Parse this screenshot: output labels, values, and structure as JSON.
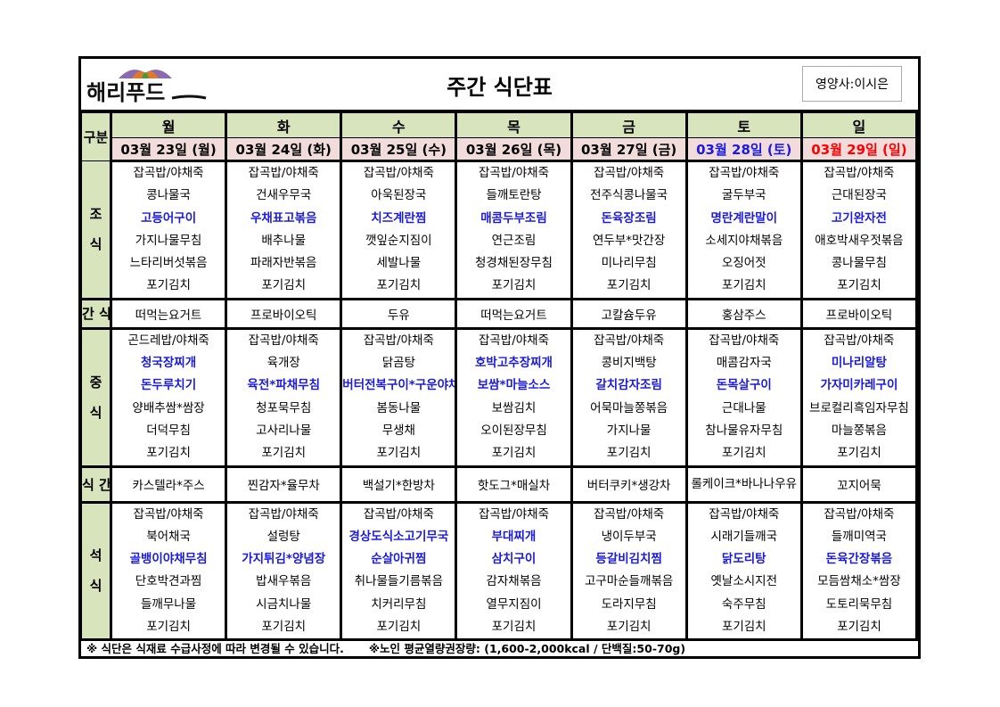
{
  "header": {
    "logo_text": "해리푸드",
    "title": "주간 식단표",
    "nutritionist": "영양사:이시은"
  },
  "labels": {
    "category": "구분",
    "breakfast": "조 식",
    "snack1": "간 식",
    "lunch": "중 식",
    "snack2": "식 간",
    "dinner": "석 식"
  },
  "colors": {
    "header_bg": "#d8e4bc",
    "date_bg": "#f2dcdb",
    "highlight": "#1a1ae0",
    "saturday": "#1a1ae0",
    "sunday": "#ff0000"
  },
  "days": [
    {
      "day": "월",
      "date": "03월 23일 (월)",
      "breakfast": [
        "잡곡밥/야채죽",
        "콩나물국",
        "고등어구이",
        "가지나물무침",
        "느타리버섯볶음",
        "포기김치"
      ],
      "snack1": "떠먹는요거트",
      "lunch": [
        "곤드레밥/야채죽",
        "청국장찌개",
        "돈두루치기",
        "양배추쌈*쌈장",
        "더덕무침",
        "포기김치"
      ],
      "snack2": "카스텔라*주스",
      "dinner": [
        "잡곡밥/야채죽",
        "북어채국",
        "골뱅이야채무침",
        "단호박견과찜",
        "들깨무나물",
        "포기김치"
      ]
    },
    {
      "day": "화",
      "date": "03월 24일 (화)",
      "breakfast": [
        "잡곡밥/야채죽",
        "건새우무국",
        "우채표고볶음",
        "배추나물",
        "파래자반볶음",
        "포기김치"
      ],
      "snack1": "프로바이오틱",
      "lunch": [
        "잡곡밥/야채죽",
        "육개장",
        "육전*파채무침",
        "청포묵무침",
        "고사리나물",
        "포기김치"
      ],
      "snack2": "찐감자*율무차",
      "dinner": [
        "잡곡밥/야채죽",
        "설렁탕",
        "가지튀김*양념장",
        "밥새우볶음",
        "시금치나물",
        "포기김치"
      ]
    },
    {
      "day": "수",
      "date": "03월 25일 (수)",
      "breakfast": [
        "잡곡밥/야채죽",
        "아욱된장국",
        "치즈계란찜",
        "깻잎순지짐이",
        "세발나물",
        "포기김치"
      ],
      "snack1": "두유",
      "lunch": [
        "잡곡밥/야채죽",
        "닭곰탕",
        "버터전복구이*구운야채",
        "봄동나물",
        "무생채",
        "포기김치"
      ],
      "snack2": "백설기*한방차",
      "dinner": [
        "잡곡밥/야채죽",
        "경상도식소고기무국",
        "순살아귀찜",
        "취나물들기름볶음",
        "치커리무침",
        "포기김치"
      ]
    },
    {
      "day": "목",
      "date": "03월 26일 (목)",
      "breakfast": [
        "잡곡밥/야채죽",
        "들깨토란탕",
        "매콤두부조림",
        "연근조림",
        "청경채된장무침",
        "포기김치"
      ],
      "snack1": "떠먹는요거트",
      "lunch": [
        "잡곡밥/야채죽",
        "호박고추장찌개",
        "보쌈*마늘소스",
        "보쌈김치",
        "오이된장무침",
        "포기김치"
      ],
      "snack2": "핫도그*매실차",
      "dinner": [
        "잡곡밥/야채죽",
        "부대찌개",
        "삼치구이",
        "감자채볶음",
        "열무지짐이",
        "포기김치"
      ]
    },
    {
      "day": "금",
      "date": "03월 27일 (금)",
      "breakfast": [
        "잡곡밥/야채죽",
        "전주식콩나물국",
        "돈육장조림",
        "연두부*맛간장",
        "미나리무침",
        "포기김치"
      ],
      "snack1": "고칼슘두유",
      "lunch": [
        "잡곡밥/야채죽",
        "콩비지백탕",
        "갈치감자조림",
        "어묵마늘쫑볶음",
        "가지나물",
        "포기김치"
      ],
      "snack2": "버터쿠키*생강차",
      "dinner": [
        "잡곡밥/야채죽",
        "냉이두부국",
        "등갈비김치찜",
        "고구마순들깨볶음",
        "도라지무침",
        "포기김치"
      ]
    },
    {
      "day": "토",
      "date": "03월 28일 (토)",
      "breakfast": [
        "잡곡밥/야채죽",
        "굴두부국",
        "명란계란말이",
        "소세지야채볶음",
        "오징어젓",
        "포기김치"
      ],
      "snack1": "홍삼주스",
      "lunch": [
        "잡곡밥/야채죽",
        "매콤감자국",
        "돈목살구이",
        "근대나물",
        "참나물유자무침",
        "포기김치"
      ],
      "snack2": "롤케이크*바나나우유",
      "dinner": [
        "잡곡밥/야채죽",
        "시래기들깨국",
        "닭도리탕",
        "옛날소시지전",
        "숙주무침",
        "포기김치"
      ]
    },
    {
      "day": "일",
      "date": "03월 29일 (일)",
      "breakfast": [
        "잡곡밥/야채죽",
        "근대된장국",
        "고기완자전",
        "애호박새우젓볶음",
        "콩나물무침",
        "포기김치"
      ],
      "snack1": "프로바이오틱",
      "lunch": [
        "잡곡밥/야채죽",
        "미나리알탕",
        "가자미카레구이",
        "브로컬리흑임자무침",
        "마늘쫑볶음",
        "포기김치"
      ],
      "snack2": "꼬지어묵",
      "dinner": [
        "잡곡밥/야채죽",
        "들깨미역국",
        "돈육간장볶음",
        "모듬쌈채소*쌈장",
        "도토리묵무침",
        "포기김치"
      ]
    }
  ],
  "highlights": {
    "breakfast": [
      2
    ],
    "lunch": [
      1,
      2
    ],
    "dinner": [
      2
    ]
  },
  "lunch_highlights_by_day": [
    [
      1,
      2
    ],
    [
      2
    ],
    [
      2
    ],
    [
      1,
      2
    ],
    [
      2
    ],
    [
      2
    ],
    [
      1,
      2
    ]
  ],
  "dinner_highlights_by_day": [
    [
      2
    ],
    [
      2
    ],
    [
      1,
      2
    ],
    [
      1,
      2
    ],
    [
      2
    ],
    [
      2
    ],
    [
      2
    ]
  ],
  "footer": {
    "notice": "※ 식단은 식재료 수급사정에 따라 변경될 수 있습니다.",
    "calories": "※노인 평균열량권장량: (1,600-2,000kcal / 단백질:50-70g)"
  }
}
